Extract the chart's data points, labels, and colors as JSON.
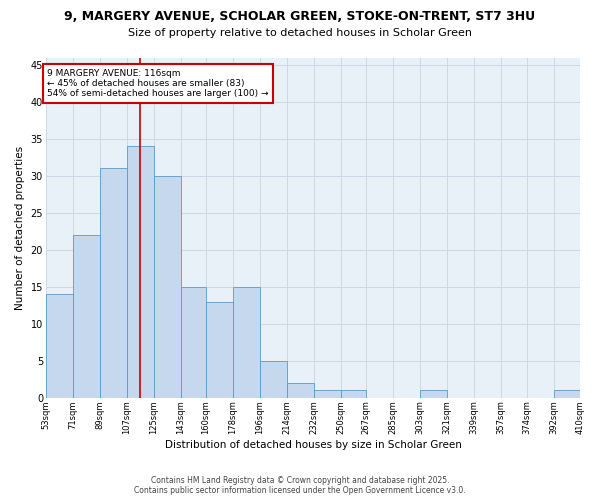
{
  "title_line1": "9, MARGERY AVENUE, SCHOLAR GREEN, STOKE-ON-TRENT, ST7 3HU",
  "title_line2": "Size of property relative to detached houses in Scholar Green",
  "xlabel": "Distribution of detached houses by size in Scholar Green",
  "ylabel": "Number of detached properties",
  "bar_edges": [
    53,
    71,
    89,
    107,
    125,
    143,
    160,
    178,
    196,
    214,
    232,
    250,
    267,
    285,
    303,
    321,
    339,
    357,
    374,
    392,
    410
  ],
  "bar_heights": [
    14,
    22,
    31,
    34,
    30,
    15,
    13,
    15,
    5,
    2,
    1,
    1,
    0,
    0,
    1,
    0,
    0,
    0,
    0,
    1
  ],
  "bar_color": "#c5d8ed",
  "bar_edge_color": "#5a9ac8",
  "grid_color": "#ccd8e8",
  "bg_color": "#e8f0f8",
  "property_line_x": 116,
  "annotation_text": "9 MARGERY AVENUE: 116sqm\n← 45% of detached houses are smaller (83)\n54% of semi-detached houses are larger (100) →",
  "annotation_box_color": "#ffffff",
  "annotation_box_edge": "#cc0000",
  "property_line_color": "#cc0000",
  "ylim": [
    0,
    46
  ],
  "yticks": [
    0,
    5,
    10,
    15,
    20,
    25,
    30,
    35,
    40,
    45
  ],
  "tick_labels": [
    "53sqm",
    "71sqm",
    "89sqm",
    "107sqm",
    "125sqm",
    "143sqm",
    "160sqm",
    "178sqm",
    "196sqm",
    "214sqm",
    "232sqm",
    "250sqm",
    "267sqm",
    "285sqm",
    "303sqm",
    "321sqm",
    "339sqm",
    "357sqm",
    "374sqm",
    "392sqm",
    "410sqm"
  ],
  "footer_line1": "Contains HM Land Registry data © Crown copyright and database right 2025.",
  "footer_line2": "Contains public sector information licensed under the Open Government Licence v3.0."
}
